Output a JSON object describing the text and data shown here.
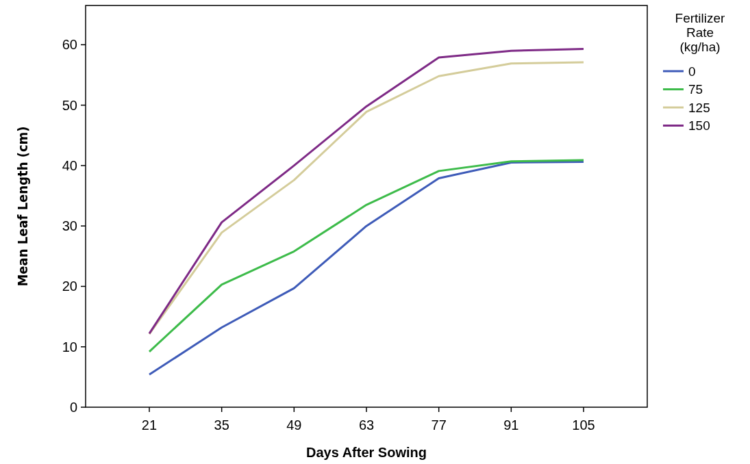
{
  "chart_data": {
    "type": "line",
    "xlabel": "Days After Sowing",
    "ylabel": "Mean Leaf Length (cm)",
    "legend_title": "Fertilizer Rate (kg/ha)",
    "categories": [
      "21",
      "35",
      "49",
      "63",
      "77",
      "91",
      "105"
    ],
    "series": [
      {
        "name": "0",
        "color": "#3e5bb8",
        "values": [
          5.4,
          13.2,
          19.7,
          30.0,
          37.9,
          40.5,
          40.6
        ]
      },
      {
        "name": "75",
        "color": "#3dbb4a",
        "values": [
          9.2,
          20.3,
          25.8,
          33.5,
          39.1,
          40.7,
          40.9
        ]
      },
      {
        "name": "125",
        "color": "#d4cc9a",
        "values": [
          12.1,
          28.9,
          37.6,
          48.9,
          54.8,
          56.9,
          57.1
        ]
      },
      {
        "name": "150",
        "color": "#7e2a86",
        "values": [
          12.2,
          30.6,
          40.0,
          49.8,
          57.9,
          59.0,
          59.3
        ]
      }
    ],
    "ylim": [
      0,
      66.5
    ],
    "yticks": [
      0,
      10,
      20,
      30,
      40,
      50,
      60
    ],
    "grid": false,
    "legend": "top right",
    "marker": "none",
    "line_style": "solid"
  }
}
